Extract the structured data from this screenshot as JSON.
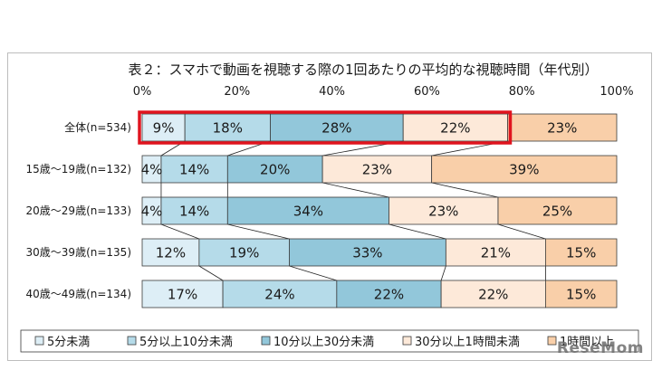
{
  "chart_data": {
    "type": "bar",
    "orientation": "horizontal",
    "stacked": "percent",
    "title": "表２：スマホで動画を視聴する際の1回あたりの平均的な視聴時間（年代別）",
    "xlim": [
      0,
      100
    ],
    "ticks": [
      "0%",
      "20%",
      "40%",
      "60%",
      "80%",
      "100%"
    ],
    "categories": [
      "全体(n=534)",
      "15歳～19歳(n=132)",
      "20歳～29歳(n=133)",
      "30歳～39歳(n=135)",
      "40歳～49歳(n=134)"
    ],
    "series": [
      {
        "name": "5分未満",
        "color": "#ddeef6",
        "values": [
          9,
          4,
          4,
          12,
          17
        ],
        "labels": [
          "9%",
          "4%",
          "4%",
          "12%",
          "17%"
        ]
      },
      {
        "name": "5分以上10分未満",
        "color": "#b5dbe9",
        "values": [
          18,
          14,
          14,
          19,
          24
        ],
        "labels": [
          "18%",
          "14%",
          "14%",
          "19%",
          "24%"
        ]
      },
      {
        "name": "10分以上30分未満",
        "color": "#92c7da",
        "values": [
          28,
          20,
          34,
          33,
          22
        ],
        "labels": [
          "28%",
          "20%",
          "34%",
          "33%",
          "22%"
        ]
      },
      {
        "name": "30分以上1時間未満",
        "color": "#fde9d9",
        "values": [
          22,
          23,
          23,
          21,
          22
        ],
        "labels": [
          "22%",
          "23%",
          "23%",
          "21%",
          "22%"
        ]
      },
      {
        "name": "1時間以上",
        "color": "#f9cfa9",
        "values": [
          23,
          39,
          25,
          15,
          15
        ],
        "labels": [
          "23%",
          "39%",
          "25%",
          "15%",
          "15%"
        ]
      }
    ],
    "highlight": {
      "category_index": 0,
      "series_span": [
        0,
        3
      ],
      "color": "#e0141e"
    },
    "legend_position": "bottom",
    "grid": false
  },
  "watermark": "ReseMom"
}
